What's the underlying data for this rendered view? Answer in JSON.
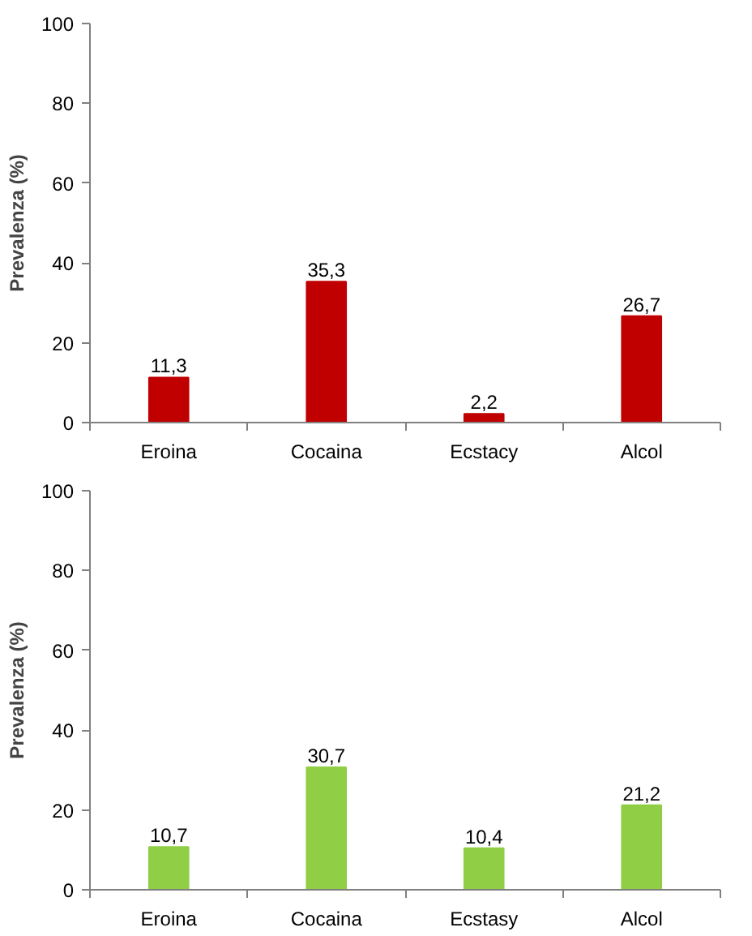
{
  "chart_data": [
    {
      "type": "bar",
      "ylabel": "Prevalenza (%)",
      "categories": [
        "Eroina",
        "Cocaina",
        "Ecstacy",
        "Alcol"
      ],
      "values": [
        11.3,
        35.3,
        2.2,
        26.7
      ],
      "value_labels": [
        "11,3",
        "35,3",
        "2,2",
        "26,7"
      ],
      "color": "#c00000",
      "ylim": [
        0,
        100
      ],
      "yticks": [
        0,
        20,
        40,
        60,
        80,
        100
      ]
    },
    {
      "type": "bar",
      "ylabel": "Prevalenza (%)",
      "categories": [
        "Eroina",
        "Cocaina",
        "Ecstasy",
        "Alcol"
      ],
      "values": [
        10.7,
        30.7,
        10.4,
        21.2
      ],
      "value_labels": [
        "10,7",
        "30,7",
        "10,4",
        "21,2"
      ],
      "color": "#8fce45",
      "ylim": [
        0,
        100
      ],
      "yticks": [
        0,
        20,
        40,
        60,
        80,
        100
      ]
    }
  ]
}
